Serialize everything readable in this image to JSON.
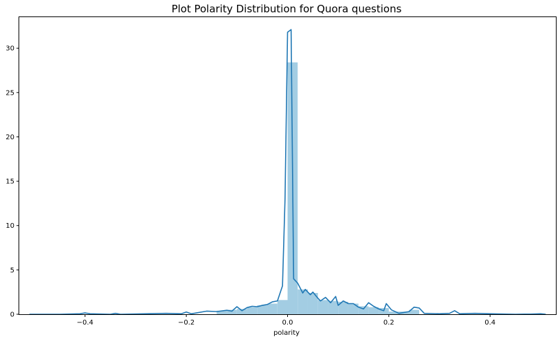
{
  "chart_data": {
    "type": "bar",
    "title": "Plot Polarity Distribution for Quora questions",
    "xlabel": "polarity",
    "ylabel": "",
    "xlim": [
      -0.53,
      0.53
    ],
    "ylim": [
      0,
      33.5
    ],
    "xticks": [
      -0.4,
      -0.2,
      0.0,
      0.2,
      0.4
    ],
    "xtick_labels": [
      "−0.4",
      "−0.2",
      "0.0",
      "0.2",
      "0.4"
    ],
    "yticks": [
      0,
      5,
      10,
      15,
      20,
      25,
      30
    ],
    "ytick_labels": [
      "0",
      "5",
      "10",
      "15",
      "20",
      "25",
      "30"
    ],
    "grid": false,
    "colors": {
      "hist": "#9ecae1",
      "kde": "#1f77b4"
    },
    "histogram": {
      "bin_width": 0.02,
      "bins": [
        {
          "x0": -0.14,
          "value": 0.4
        },
        {
          "x0": -0.12,
          "value": 0.5
        },
        {
          "x0": -0.1,
          "value": 0.6
        },
        {
          "x0": -0.08,
          "value": 0.8
        },
        {
          "x0": -0.06,
          "value": 1.0
        },
        {
          "x0": -0.04,
          "value": 1.2
        },
        {
          "x0": -0.02,
          "value": 1.6
        },
        {
          "x0": 0.0,
          "value": 28.4
        },
        {
          "x0": 0.02,
          "value": 2.8
        },
        {
          "x0": 0.04,
          "value": 2.4
        },
        {
          "x0": 0.06,
          "value": 1.6
        },
        {
          "x0": 0.08,
          "value": 1.5
        },
        {
          "x0": 0.1,
          "value": 1.4
        },
        {
          "x0": 0.12,
          "value": 1.2
        },
        {
          "x0": 0.14,
          "value": 0.9
        },
        {
          "x0": 0.16,
          "value": 0.8
        },
        {
          "x0": 0.18,
          "value": 0.7
        },
        {
          "x0": 0.2,
          "value": 0.3
        },
        {
          "x0": 0.22,
          "value": 0.3
        },
        {
          "x0": 0.24,
          "value": 0.5
        }
      ]
    },
    "kde": {
      "x": [
        -0.51,
        -0.45,
        -0.41,
        -0.4,
        -0.39,
        -0.35,
        -0.34,
        -0.33,
        -0.28,
        -0.24,
        -0.21,
        -0.2,
        -0.19,
        -0.18,
        -0.16,
        -0.14,
        -0.12,
        -0.11,
        -0.1,
        -0.09,
        -0.08,
        -0.07,
        -0.06,
        -0.05,
        -0.04,
        -0.03,
        -0.02,
        -0.01,
        -0.005,
        0.0,
        0.007,
        0.012,
        0.02,
        0.03,
        0.035,
        0.045,
        0.05,
        0.06,
        0.065,
        0.075,
        0.085,
        0.095,
        0.1,
        0.11,
        0.12,
        0.13,
        0.14,
        0.15,
        0.16,
        0.17,
        0.18,
        0.19,
        0.195,
        0.205,
        0.22,
        0.24,
        0.25,
        0.26,
        0.27,
        0.3,
        0.32,
        0.33,
        0.34,
        0.37,
        0.4,
        0.45,
        0.48,
        0.5,
        0.51
      ],
      "y": [
        0.0,
        0.0,
        0.05,
        0.15,
        0.05,
        0.0,
        0.1,
        0.0,
        0.05,
        0.1,
        0.05,
        0.25,
        0.05,
        0.15,
        0.35,
        0.3,
        0.45,
        0.35,
        0.85,
        0.4,
        0.75,
        0.9,
        0.85,
        1.0,
        1.1,
        1.4,
        1.5,
        3.2,
        13.0,
        31.8,
        32.1,
        4.0,
        3.5,
        2.4,
        2.8,
        2.2,
        2.5,
        1.8,
        1.5,
        1.9,
        1.3,
        2.0,
        1.0,
        1.5,
        1.2,
        1.2,
        0.8,
        0.6,
        1.3,
        0.9,
        0.6,
        0.4,
        1.2,
        0.5,
        0.1,
        0.3,
        0.8,
        0.7,
        0.1,
        0.05,
        0.1,
        0.4,
        0.05,
        0.1,
        0.05,
        0.0,
        0.02,
        0.05,
        0.0
      ]
    }
  }
}
